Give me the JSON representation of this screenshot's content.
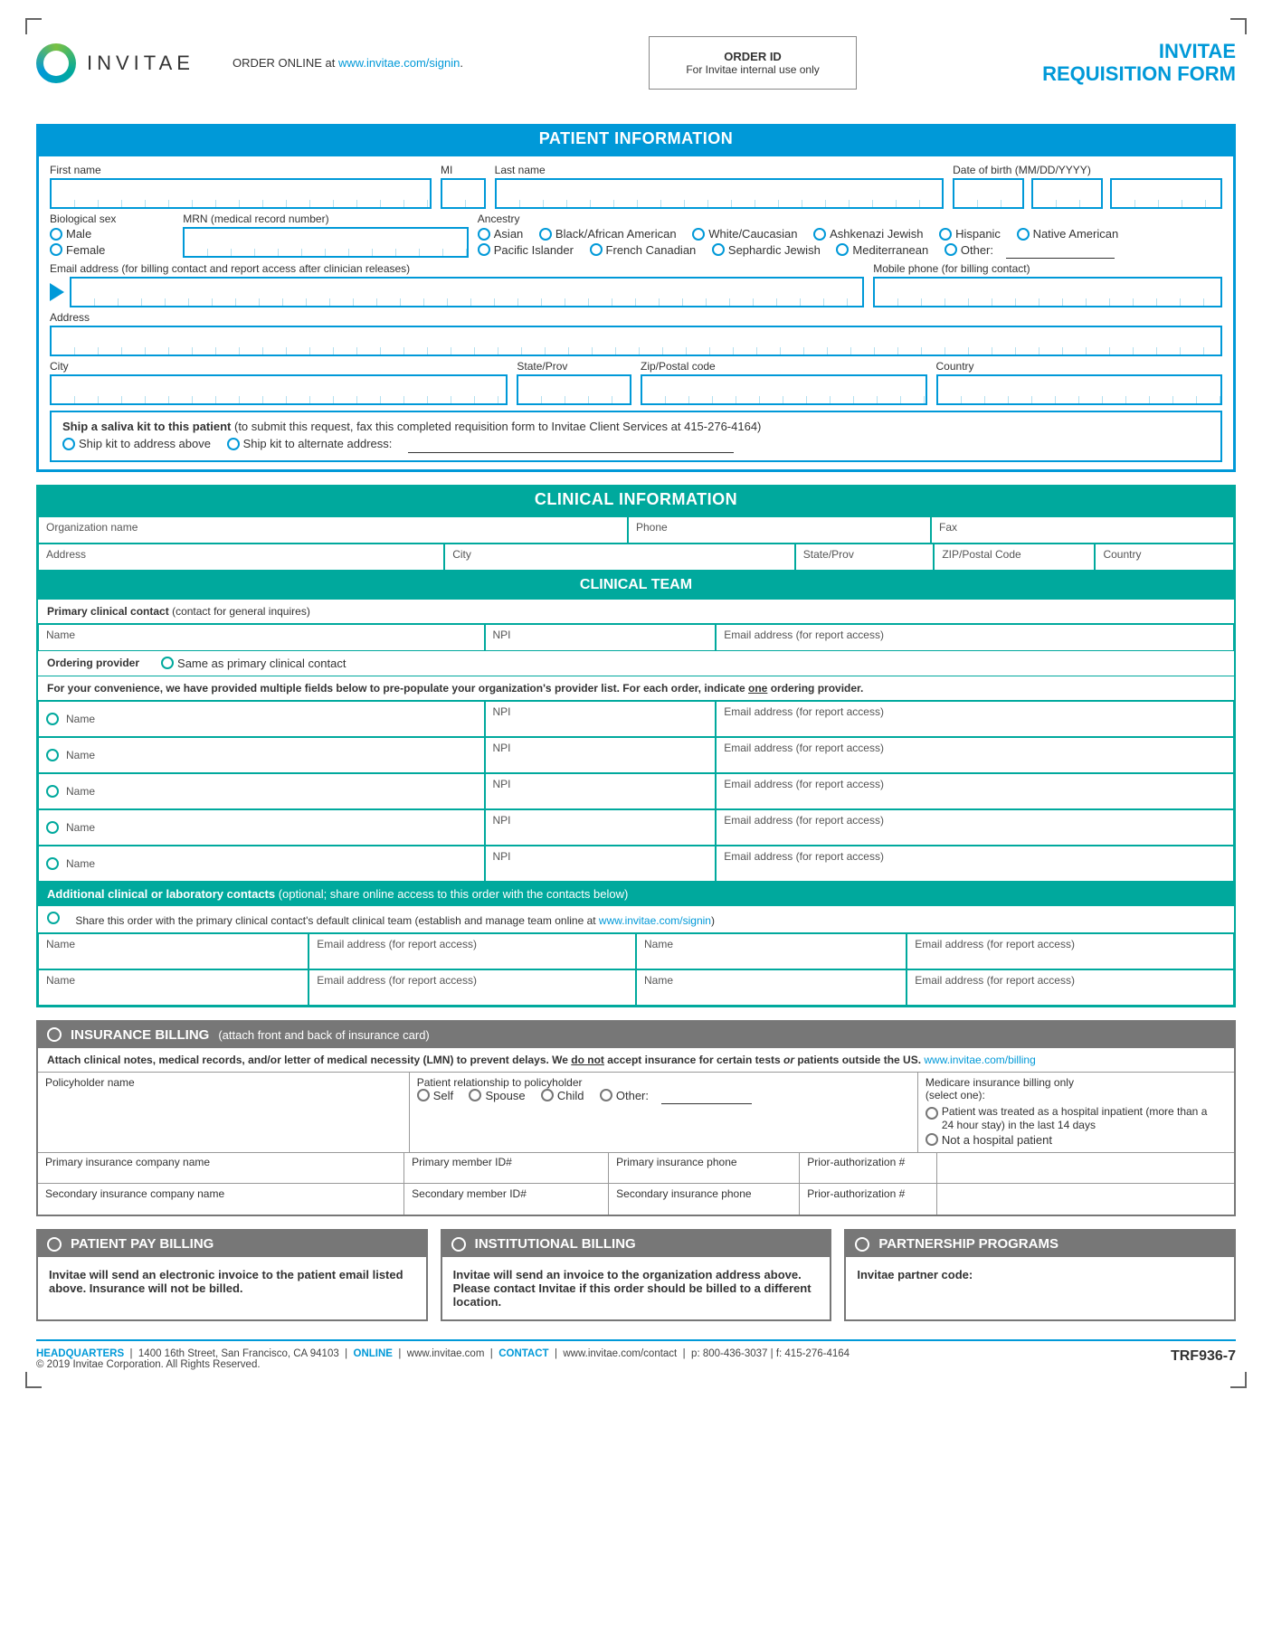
{
  "header": {
    "brand": "INVITAE",
    "order_online_pre": "ORDER ONLINE at ",
    "order_online_link": "www.invitae.com/signin",
    "order_id_title": "ORDER ID",
    "order_id_sub": "For Invitae internal use only",
    "title_line1": "INVITAE",
    "title_line2": "REQUISITION FORM"
  },
  "colors": {
    "blue": "#0099d8",
    "teal": "#00a99d",
    "gray": "#777777"
  },
  "patient": {
    "hdr": "PATIENT INFORMATION",
    "first_name": "First name",
    "mi": "MI",
    "last_name": "Last name",
    "dob": "Date of birth (MM/DD/YYYY)",
    "bio_sex": "Biological sex",
    "male": "Male",
    "female": "Female",
    "mrn": "MRN (medical record number)",
    "ancestry": "Ancestry",
    "ancestry_opts_row1": [
      "Asian",
      "Black/African American",
      "White/Caucasian",
      "Ashkenazi Jewish",
      "Hispanic",
      "Native American"
    ],
    "ancestry_opts_row2": [
      "Pacific Islander",
      "French Canadian",
      "Sephardic Jewish",
      "Mediterranean",
      "Other:"
    ],
    "email_lbl": "Email address (for billing contact and report access after clinician releases)",
    "mobile_lbl": "Mobile phone (for billing contact)",
    "address": "Address",
    "city": "City",
    "state": "State/Prov",
    "zip": "Zip/Postal code",
    "country": "Country",
    "ship_title": "Ship a saliva kit to this patient",
    "ship_note": " (to submit this request, fax this completed requisition form to Invitae Client Services at 415-276-4164)",
    "ship_opt1": "Ship kit to address above",
    "ship_opt2": "Ship kit to alternate address:"
  },
  "clinical": {
    "hdr": "CLINICAL INFORMATION",
    "org": "Organization name",
    "phone": "Phone",
    "fax": "Fax",
    "address": "Address",
    "city": "City",
    "state": "State/Prov",
    "zip": "ZIP/Postal Code",
    "country": "Country"
  },
  "team": {
    "hdr": "CLINICAL TEAM",
    "primary_lbl": "Primary clinical contact",
    "primary_note": " (contact for general inquires)",
    "name": "Name",
    "npi": "NPI",
    "email": "Email address (for report access)",
    "ordering": "Ordering provider",
    "same_as": "Same as primary clinical contact",
    "instr_pre": "For your convenience, we have provided multiple fields below to pre-populate your organization's provider list.  For each order, indicate ",
    "instr_one": "one",
    "instr_post": " ordering provider.",
    "addl_hdr": "Additional clinical or laboratory contacts",
    "addl_sub": " (optional; share online access to this order with the contacts below)",
    "share_pre": "Share this order with the primary clinical contact's default clinical team (establish and manage team online at ",
    "share_link": "www.invitae.com/signin",
    "share_post": ")"
  },
  "ins": {
    "hdr": "INSURANCE BILLING",
    "hdr_sub": "(attach front and back of insurance card)",
    "instr_pre": "Attach clinical notes, medical records, and/or letter of medical necessity (LMN) to prevent delays.  We ",
    "instr_donot": "do not",
    "instr_mid": " accept insurance for certain tests ",
    "instr_or": "or",
    "instr_post": " patients outside the US. ",
    "instr_link": "www.invitae.com/billing",
    "policyholder": "Policyholder name",
    "relationship": "Patient relationship to policyholder",
    "rel_opts": [
      "Self",
      "Spouse",
      "Child",
      "Other:"
    ],
    "medicare_t": "Medicare insurance billing only",
    "medicare_s": "(select one):",
    "med_opt1": "Patient was treated as a hospital inpatient (more than a 24 hour stay) in the last 14 days",
    "med_opt2": "Not a hospital patient",
    "primary_co": "Primary insurance company name",
    "primary_id": "Primary member ID#",
    "primary_phone": "Primary insurance phone",
    "prior_auth": "Prior-authorization #",
    "secondary_co": "Secondary insurance company name",
    "secondary_id": "Secondary member ID#",
    "secondary_phone": "Secondary insurance phone"
  },
  "tri": {
    "pay_hdr": "PATIENT PAY BILLING",
    "pay_body": "Invitae will send an electronic invoice to the patient email listed above. Insurance will not be billed.",
    "inst_hdr": "INSTITUTIONAL BILLING",
    "inst_body": "Invitae will send an invoice to the organization address above. Please contact Invitae if this order should be billed to a different location.",
    "part_hdr": "PARTNERSHIP PROGRAMS",
    "part_body": "Invitae partner code:"
  },
  "footer": {
    "hq": "HEADQUARTERS",
    "addr": "1400 16th Street, San Francisco, CA 94103",
    "online": "ONLINE",
    "online_v": "www.invitae.com",
    "contact": "CONTACT",
    "contact_v": "www.invitae.com/contact",
    "phones": "p: 800-436-3037  |  f: 415-276-4164",
    "copyright": "© 2019 Invitae Corporation. All Rights Reserved.",
    "code": "TRF936-7"
  }
}
